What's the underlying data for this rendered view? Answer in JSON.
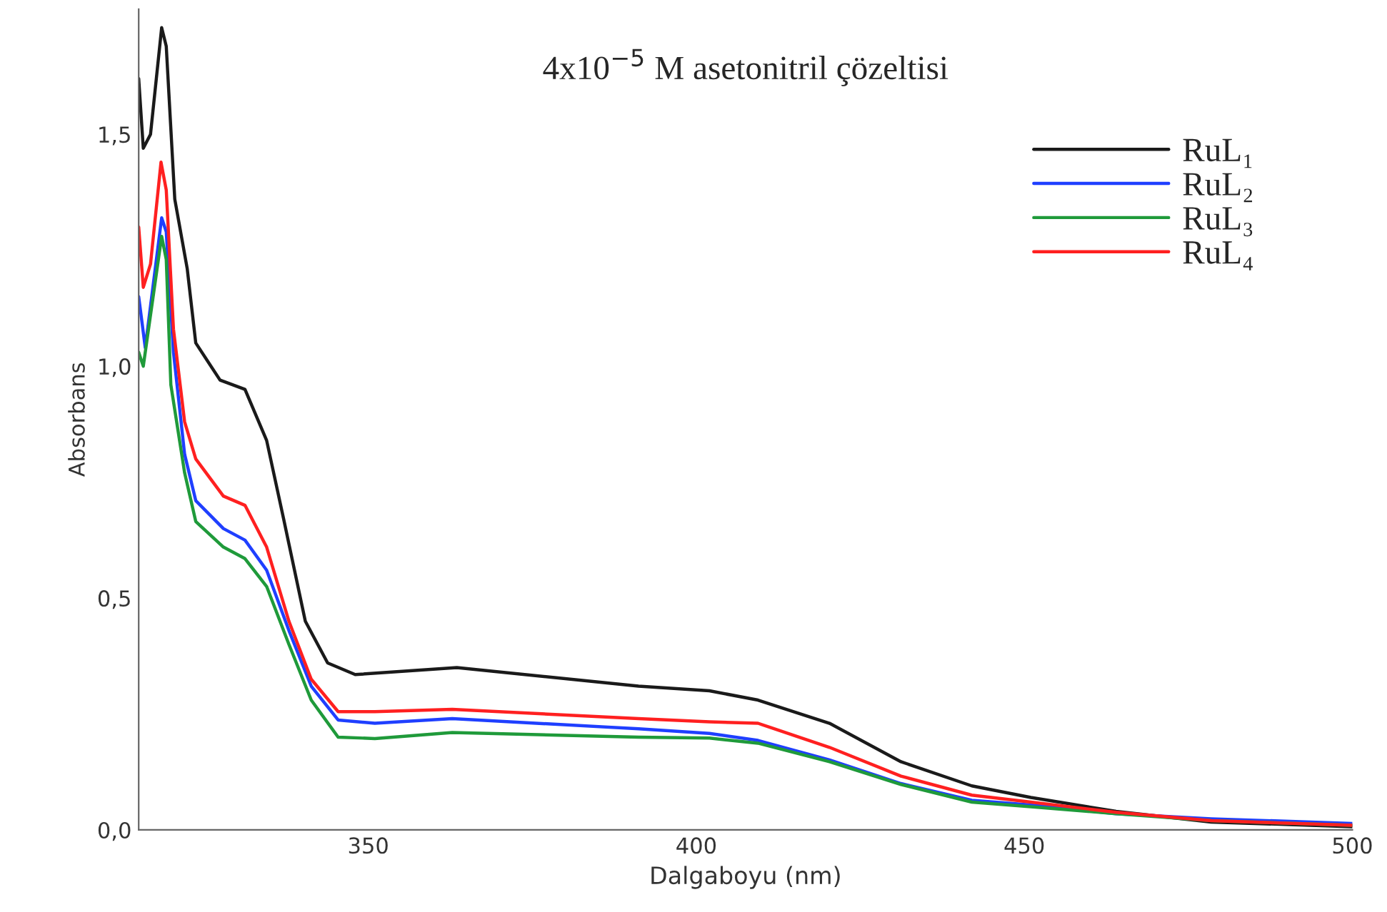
{
  "chart_data": {
    "type": "line",
    "title": "4x10$^{−5}$ M asetonitril çözeltisi",
    "xlabel": "Dalgaboyu (nm)",
    "ylabel": "Absorbans",
    "xlim": [
      315,
      500
    ],
    "xticks": [
      350,
      400,
      450,
      500
    ],
    "ylim": [
      0,
      1.77
    ],
    "yticks": [
      {
        "value": 0,
        "label": "0,0"
      },
      {
        "value": 0.5,
        "label": "0,5"
      },
      {
        "value": 1.0,
        "label": "1,0"
      },
      {
        "value": 1.5,
        "label": "1,5"
      }
    ],
    "grid": false,
    "legend": "top right",
    "marker": "none",
    "line_style": "solid",
    "series": [
      {
        "name": "RuL₁",
        "color": "#1a1a1a",
        "x": [
          315,
          315.7,
          316.8,
          318.5,
          319.2,
          320.5,
          322.4,
          323.7,
          327.4,
          331.2,
          334.5,
          337.1,
          340.4,
          343.8,
          348,
          363.5,
          391.2,
          402,
          409.4,
          420.3,
          431.2,
          442,
          451,
          464,
          478.5,
          500
        ],
        "values": [
          1.62,
          1.47,
          1.5,
          1.73,
          1.69,
          1.36,
          1.21,
          1.05,
          0.97,
          0.95,
          0.84,
          0.67,
          0.45,
          0.36,
          0.335,
          0.35,
          0.31,
          0.3,
          0.28,
          0.23,
          0.147,
          0.095,
          0.07,
          0.04,
          0.017,
          0.007
        ]
      },
      {
        "name": "RuL₂",
        "color": "#1f3fff",
        "x": [
          315,
          316,
          318.5,
          319.2,
          320.3,
          322,
          323.7,
          327.9,
          331.2,
          334.5,
          337.9,
          341.3,
          345.4,
          351,
          362.8,
          391.2,
          402,
          409.4,
          420.3,
          431.2,
          442,
          451,
          464,
          478.5,
          500
        ],
        "values": [
          1.15,
          1.04,
          1.32,
          1.29,
          1.03,
          0.81,
          0.71,
          0.65,
          0.625,
          0.56,
          0.43,
          0.31,
          0.237,
          0.23,
          0.24,
          0.218,
          0.208,
          0.193,
          0.151,
          0.1,
          0.064,
          0.054,
          0.035,
          0.024,
          0.014
        ]
      },
      {
        "name": "RuL₃",
        "color": "#1f9a3a",
        "x": [
          315,
          315.7,
          318.5,
          319.2,
          319.9,
          322,
          323.7,
          327.9,
          331.2,
          334.5,
          337.9,
          341.3,
          345.4,
          351,
          362.8,
          391.2,
          402,
          409.4,
          420.3,
          431.2,
          442,
          451,
          464,
          478.5,
          500
        ],
        "values": [
          1.03,
          1.0,
          1.28,
          1.23,
          0.96,
          0.77,
          0.665,
          0.61,
          0.585,
          0.525,
          0.4,
          0.28,
          0.2,
          0.197,
          0.21,
          0.2,
          0.198,
          0.187,
          0.147,
          0.098,
          0.06,
          0.05,
          0.035,
          0.02,
          0.01
        ]
      },
      {
        "name": "RuL₄",
        "color": "#ff2020",
        "x": [
          315,
          315.7,
          316.8,
          318.4,
          319.2,
          320.3,
          322,
          323.7,
          327.9,
          331.2,
          334.5,
          337.9,
          341.3,
          345.4,
          351,
          362.8,
          391.2,
          402,
          409.4,
          420.3,
          431.2,
          442,
          451,
          464,
          478.5,
          500
        ],
        "values": [
          1.3,
          1.17,
          1.22,
          1.44,
          1.38,
          1.08,
          0.88,
          0.8,
          0.72,
          0.7,
          0.61,
          0.45,
          0.325,
          0.255,
          0.255,
          0.26,
          0.24,
          0.233,
          0.23,
          0.178,
          0.116,
          0.075,
          0.06,
          0.038,
          0.02,
          0.01
        ]
      }
    ]
  }
}
